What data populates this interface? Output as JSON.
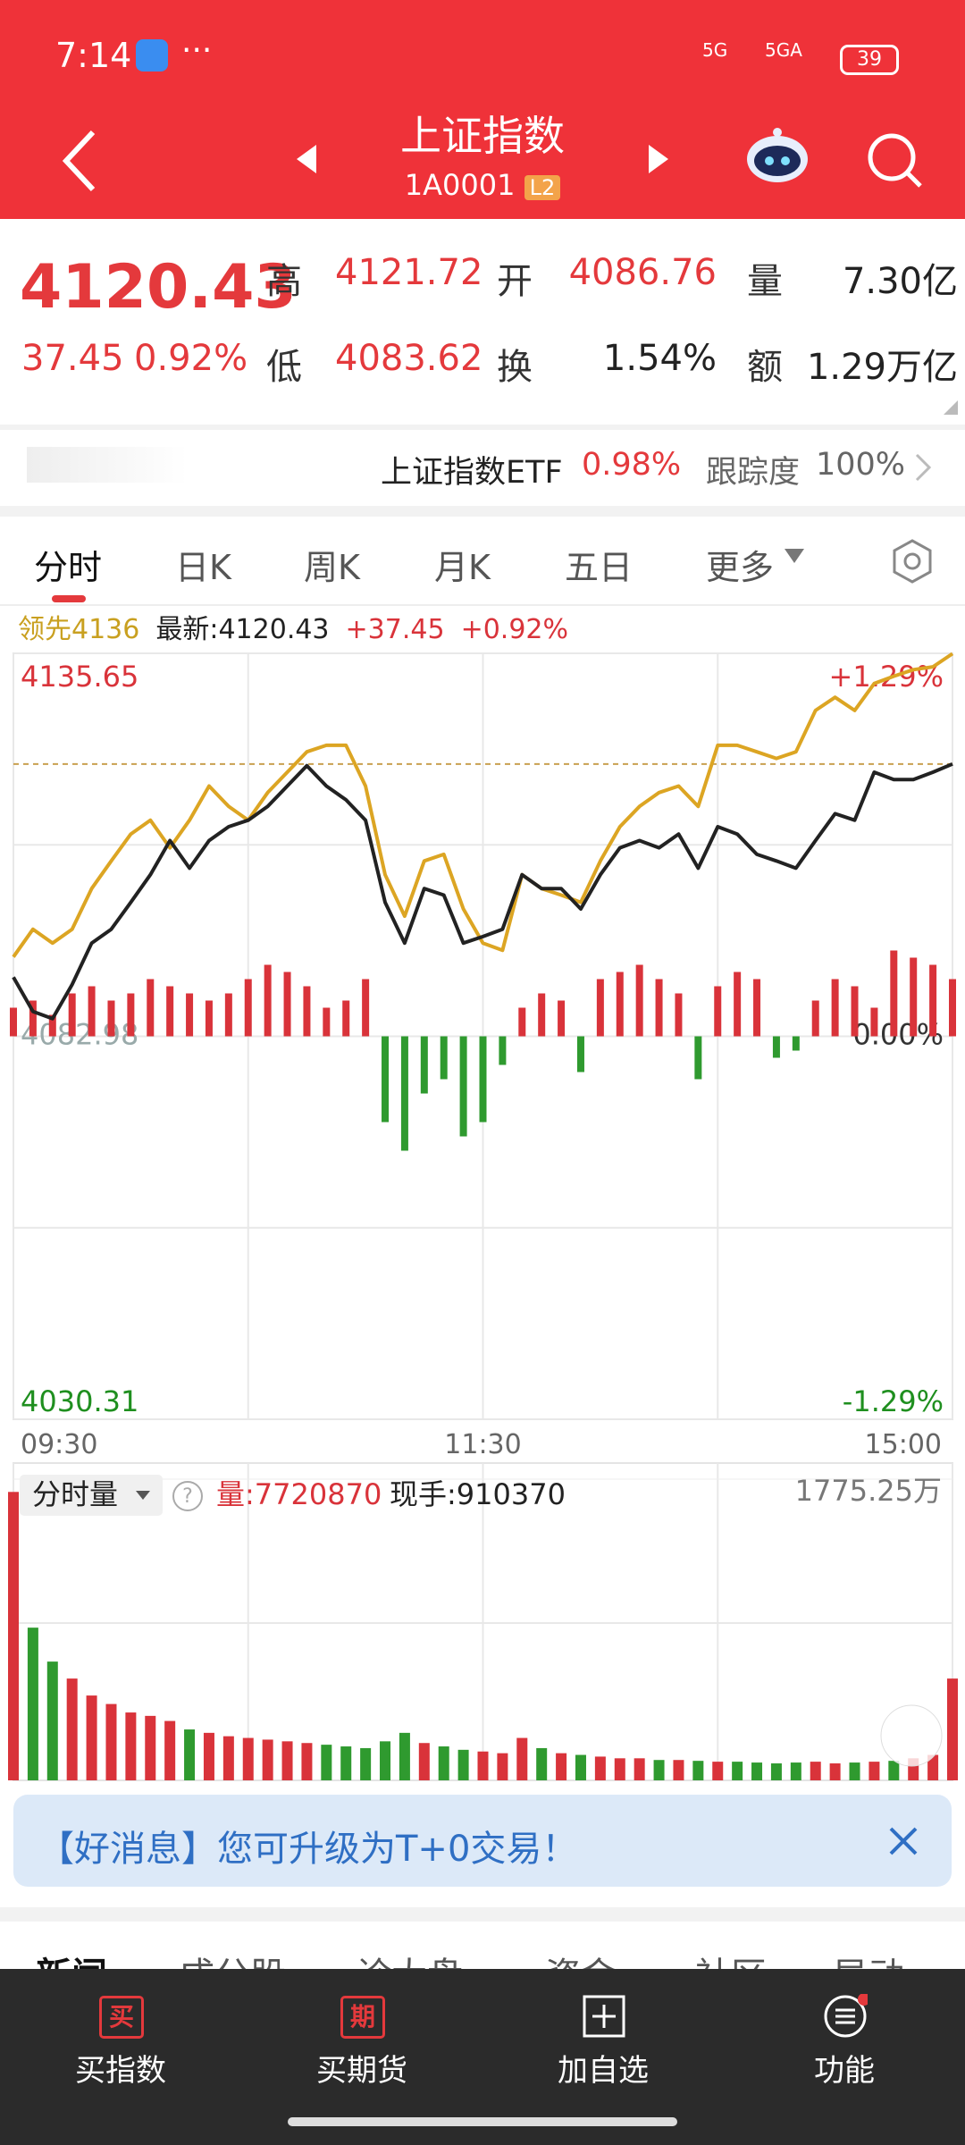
{
  "status_bar": {
    "time": "7:14",
    "network": [
      "5G",
      "5GA"
    ],
    "battery": "39"
  },
  "header": {
    "title": "上证指数",
    "code": "1A0001",
    "badge": "L2"
  },
  "quote": {
    "price": "4120.43",
    "change": "37.45",
    "change_pct": "0.92%",
    "fields": [
      {
        "label": "高",
        "value": "4121.72"
      },
      {
        "label": "开",
        "value": "4086.76"
      },
      {
        "label": "量",
        "value": "7.30亿"
      },
      {
        "label": "低",
        "value": "4083.62"
      },
      {
        "label": "换",
        "value": "1.54%"
      },
      {
        "label": "额",
        "value": "1.29万亿"
      }
    ]
  },
  "etf": {
    "name": "上证指数ETF",
    "change_pct": "0.98%",
    "tracking_label": "跟踪度",
    "tracking": "100%"
  },
  "tabs": [
    "分时",
    "日K",
    "周K",
    "月K",
    "五日",
    "更多"
  ],
  "chart_data": [
    {
      "type": "line",
      "legend": {
        "leader": "领先4136",
        "latest": "最新:4120.43",
        "change": "+37.45",
        "change_pct": "+0.92%"
      },
      "x": [
        0,
        5,
        10,
        15,
        20,
        25,
        30,
        35,
        40,
        45,
        50,
        55,
        60,
        65,
        70,
        75,
        80,
        85,
        90,
        95,
        100,
        105,
        110,
        115,
        120,
        125,
        130,
        135,
        140,
        145,
        150,
        155,
        160,
        165,
        170,
        175,
        180,
        185,
        190,
        195,
        200,
        205,
        210,
        215,
        220,
        225,
        230,
        235,
        240
      ],
      "xlim": [
        0,
        240
      ],
      "xticks": [
        {
          "value": 0,
          "label": "09:30"
        },
        {
          "value": 120,
          "label": "11:30"
        },
        {
          "value": 240,
          "label": "15:00"
        }
      ],
      "ylim": [
        4030.31,
        4135.65
      ],
      "yticks": [
        4135.65,
        4082.98,
        4030.31
      ],
      "y2lim": [
        -1.29,
        1.29
      ],
      "y2ticks": [
        {
          "value": 1.29,
          "label": "+1.29%"
        },
        {
          "value": 0,
          "label": "0.00%"
        },
        {
          "value": -1.29,
          "label": "-1.29%"
        }
      ],
      "latest_line": 4120.43,
      "grid": true,
      "series": [
        {
          "color": "#222222",
          "values": [
            4091.1,
            4086.4,
            4085.4,
            4090.1,
            4095.8,
            4097.7,
            4101.4,
            4105.2,
            4109.9,
            4106.1,
            4109.9,
            4111.8,
            4112.7,
            4114.6,
            4117.4,
            4120.2,
            4117.4,
            4115.5,
            4112.7,
            4101.4,
            4095.8,
            4103.3,
            4102.4,
            4095.8,
            4096.7,
            4097.7,
            4105.2,
            4103.3,
            4103.3,
            4100.5,
            4105.2,
            4108.9,
            4109.9,
            4108.9,
            4110.8,
            4106.1,
            4111.8,
            4110.8,
            4108.0,
            4107.1,
            4106.1,
            4109.9,
            4113.6,
            4112.7,
            4119.3,
            4118.3,
            4118.3,
            4119.3,
            4120.43
          ]
        },
        {
          "color": "#dca523",
          "values": [
            4093.9,
            4097.7,
            4095.8,
            4097.7,
            4103.3,
            4107.1,
            4110.8,
            4112.7,
            4108.9,
            4112.7,
            4117.4,
            4114.6,
            4112.7,
            4116.5,
            4119.3,
            4122.1,
            4123.0,
            4123.0,
            4117.4,
            4105.2,
            4099.5,
            4107.1,
            4108.0,
            4100.5,
            4095.8,
            4094.8,
            4105.2,
            4103.3,
            4102.4,
            4101.4,
            4107.1,
            4111.8,
            4114.6,
            4116.5,
            4117.4,
            4114.6,
            4123.0,
            4123.0,
            4122.1,
            4121.2,
            4122.1,
            4127.8,
            4129.6,
            4127.8,
            4131.5,
            4132.5,
            4133.4,
            4133.8,
            4135.6
          ]
        }
      ],
      "bars": {
        "ylim": [
          -100,
          100
        ],
        "up_color": "#d9333a",
        "down_color": "#2f9a2f",
        "values": [
          20,
          25,
          15,
          30,
          35,
          25,
          30,
          40,
          35,
          30,
          25,
          30,
          40,
          50,
          45,
          35,
          20,
          25,
          40,
          -60,
          -80,
          -40,
          -30,
          -70,
          -60,
          -20,
          20,
          30,
          25,
          -25,
          40,
          45,
          50,
          40,
          30,
          -30,
          35,
          45,
          40,
          -15,
          -10,
          25,
          40,
          35,
          20,
          60,
          55,
          50,
          40
        ]
      }
    },
    {
      "type": "bar",
      "selector": "分时量",
      "volume": "量:7720870",
      "last": "现手:910370",
      "xlim": [
        0,
        240
      ],
      "ylim": [
        0,
        1775.25
      ],
      "yticks": [
        {
          "value": 1775.25,
          "label": "1775.25万"
        }
      ],
      "up_color": "#d9333a",
      "down_color": "#2f9a2f",
      "values": [
        1700,
        900,
        700,
        600,
        500,
        450,
        400,
        380,
        350,
        300,
        280,
        260,
        250,
        240,
        230,
        220,
        210,
        200,
        190,
        230,
        280,
        220,
        200,
        180,
        170,
        160,
        250,
        190,
        160,
        150,
        140,
        130,
        130,
        120,
        120,
        115,
        110,
        110,
        105,
        100,
        105,
        110,
        100,
        105,
        110,
        115,
        130,
        150,
        600
      ]
    }
  ],
  "banner": {
    "text": "【好消息】您可升级为T+0交易！"
  },
  "news_tabs": [
    "新闻",
    "成分股",
    "诊大盘",
    "资金",
    "社区",
    "异动"
  ],
  "nav": [
    {
      "icon": "买",
      "label": "买指数"
    },
    {
      "icon": "期",
      "label": "买期货"
    },
    {
      "label": "加自选"
    },
    {
      "label": "功能"
    }
  ]
}
